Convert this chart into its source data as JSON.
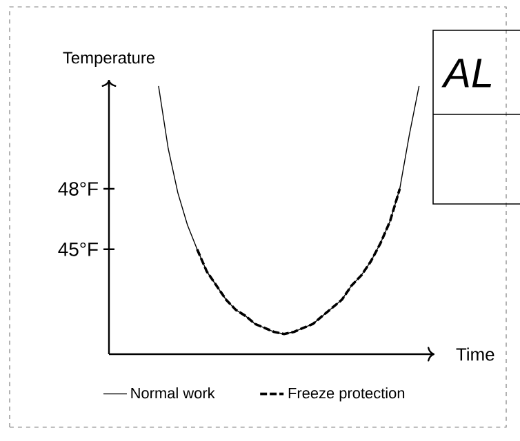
{
  "chart_data": {
    "type": "line",
    "xlabel": "Time",
    "ylabel": "Temperature",
    "categories": [
      null,
      null,
      null,
      null,
      null,
      null,
      null,
      null,
      null,
      null,
      null,
      null,
      null,
      null,
      null,
      null,
      null,
      null,
      null,
      null,
      null,
      null,
      null,
      null,
      null,
      null,
      null,
      null
    ],
    "series": [
      {
        "name": "Normal work",
        "color": "#000000",
        "line_style": "solid",
        "values": [
          53.1,
          50.0,
          47.8,
          46.2,
          45.0,
          43.9,
          43.2,
          42.5,
          42.0,
          41.7,
          41.3,
          41.1,
          40.9,
          40.8,
          40.9,
          41.1,
          41.3,
          41.7,
          42.1,
          42.5,
          43.2,
          43.7,
          44.4,
          45.3,
          46.4,
          48.0,
          50.7,
          53.1
        ]
      },
      {
        "name": "Freeze protection",
        "color": "#000000",
        "line_style": "dashed",
        "values": [
          null,
          null,
          null,
          null,
          45.0,
          43.9,
          43.2,
          42.5,
          42.0,
          41.7,
          41.3,
          41.1,
          40.9,
          40.8,
          40.9,
          41.1,
          41.3,
          41.7,
          42.1,
          42.5,
          43.2,
          43.7,
          44.4,
          45.3,
          46.4,
          48.0,
          null,
          null
        ]
      }
    ],
    "ylim": [
      39.8,
      53.4
    ],
    "yticks": [
      {
        "value": 45,
        "label": "45°F"
      },
      {
        "value": 48,
        "label": "48°F"
      }
    ],
    "legend": "bottom",
    "annotations": [
      "AL"
    ]
  }
}
